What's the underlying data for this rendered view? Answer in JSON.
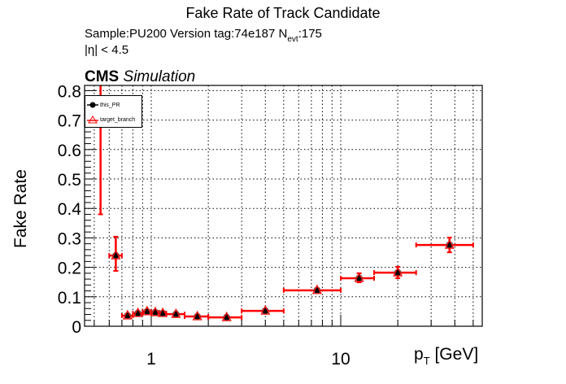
{
  "header": {
    "title": "Fake Rate of Track Candidate",
    "sample": "Sample:PU200   Version tag:74e187  N",
    "nevt_sub": "evt",
    "nevt_value": ":175",
    "eta_cut": "|η| < 4.5",
    "cms": "CMS",
    "simulation": "Simulation"
  },
  "legend": {
    "items": [
      {
        "label": "this_PR",
        "marker": "circle",
        "color": "#000000"
      },
      {
        "label": "target_branch",
        "marker": "triangle-open",
        "color": "#ff0000"
      }
    ]
  },
  "colors": {
    "this_PR": "#000000",
    "target_branch": "#ff0000",
    "grid": "#000000"
  },
  "chart_data": {
    "type": "scatter",
    "title": "Fake Rate of Track Candidate",
    "xlabel": "p_T [GeV]",
    "xlabel_main": "p",
    "xlabel_sub": "T",
    "xlabel_unit": " [GeV]",
    "ylabel": "Fake Rate",
    "xscale": "log",
    "xlim": [
      0.445,
      55
    ],
    "ylim": [
      0,
      0.82
    ],
    "grid": true,
    "legend_position": "top-left",
    "x_tick_labels": [
      {
        "value": 1,
        "label": "1"
      },
      {
        "value": 10,
        "label": "10"
      }
    ],
    "y_tick_labels": [
      {
        "value": 0,
        "label": "0"
      },
      {
        "value": 0.1,
        "label": "0.1"
      },
      {
        "value": 0.2,
        "label": "0.2"
      },
      {
        "value": 0.3,
        "label": "0.3"
      },
      {
        "value": 0.4,
        "label": "0.4"
      },
      {
        "value": 0.5,
        "label": "0.5"
      },
      {
        "value": 0.6,
        "label": "0.6"
      },
      {
        "value": 0.7,
        "label": "0.7"
      },
      {
        "value": 0.8,
        "label": "0.8"
      }
    ],
    "bins": [
      {
        "xlo": 0.5,
        "xhi": 0.6,
        "x": 0.54,
        "y": 1.0,
        "ylo": 0.38,
        "yhi": 1.0
      },
      {
        "xlo": 0.6,
        "xhi": 0.7,
        "x": 0.65,
        "y": 0.24,
        "ylo": 0.188,
        "yhi": 0.304
      },
      {
        "xlo": 0.7,
        "xhi": 0.8,
        "x": 0.75,
        "y": 0.036,
        "ylo": 0.032,
        "yhi": 0.04
      },
      {
        "xlo": 0.8,
        "xhi": 0.9,
        "x": 0.85,
        "y": 0.044,
        "ylo": 0.04,
        "yhi": 0.048
      },
      {
        "xlo": 0.9,
        "xhi": 1.0,
        "x": 0.95,
        "y": 0.05,
        "ylo": 0.046,
        "yhi": 0.054
      },
      {
        "xlo": 1.0,
        "xhi": 1.1,
        "x": 1.05,
        "y": 0.047,
        "ylo": 0.043,
        "yhi": 0.051
      },
      {
        "xlo": 1.1,
        "xhi": 1.2,
        "x": 1.15,
        "y": 0.044,
        "ylo": 0.04,
        "yhi": 0.048
      },
      {
        "xlo": 1.2,
        "xhi": 1.5,
        "x": 1.35,
        "y": 0.041,
        "ylo": 0.038,
        "yhi": 0.044
      },
      {
        "xlo": 1.5,
        "xhi": 2.0,
        "x": 1.75,
        "y": 0.033,
        "ylo": 0.03,
        "yhi": 0.036
      },
      {
        "xlo": 2.0,
        "xhi": 3.0,
        "x": 2.5,
        "y": 0.03,
        "ylo": 0.027,
        "yhi": 0.033
      },
      {
        "xlo": 3.0,
        "xhi": 5.0,
        "x": 4.0,
        "y": 0.052,
        "ylo": 0.048,
        "yhi": 0.056
      },
      {
        "xlo": 5.0,
        "xhi": 10.0,
        "x": 7.5,
        "y": 0.122,
        "ylo": 0.116,
        "yhi": 0.128
      },
      {
        "xlo": 10.0,
        "xhi": 15.0,
        "x": 12.5,
        "y": 0.163,
        "ylo": 0.149,
        "yhi": 0.18
      },
      {
        "xlo": 15.0,
        "xhi": 25.0,
        "x": 20.0,
        "y": 0.182,
        "ylo": 0.163,
        "yhi": 0.202
      },
      {
        "xlo": 25.0,
        "xhi": 50.0,
        "x": 37.5,
        "y": 0.276,
        "ylo": 0.251,
        "yhi": 0.301
      }
    ],
    "series": [
      {
        "name": "this_PR",
        "color": "#000000",
        "marker": "circle"
      },
      {
        "name": "target_branch",
        "color": "#ff0000",
        "marker": "triangle-open"
      }
    ]
  }
}
